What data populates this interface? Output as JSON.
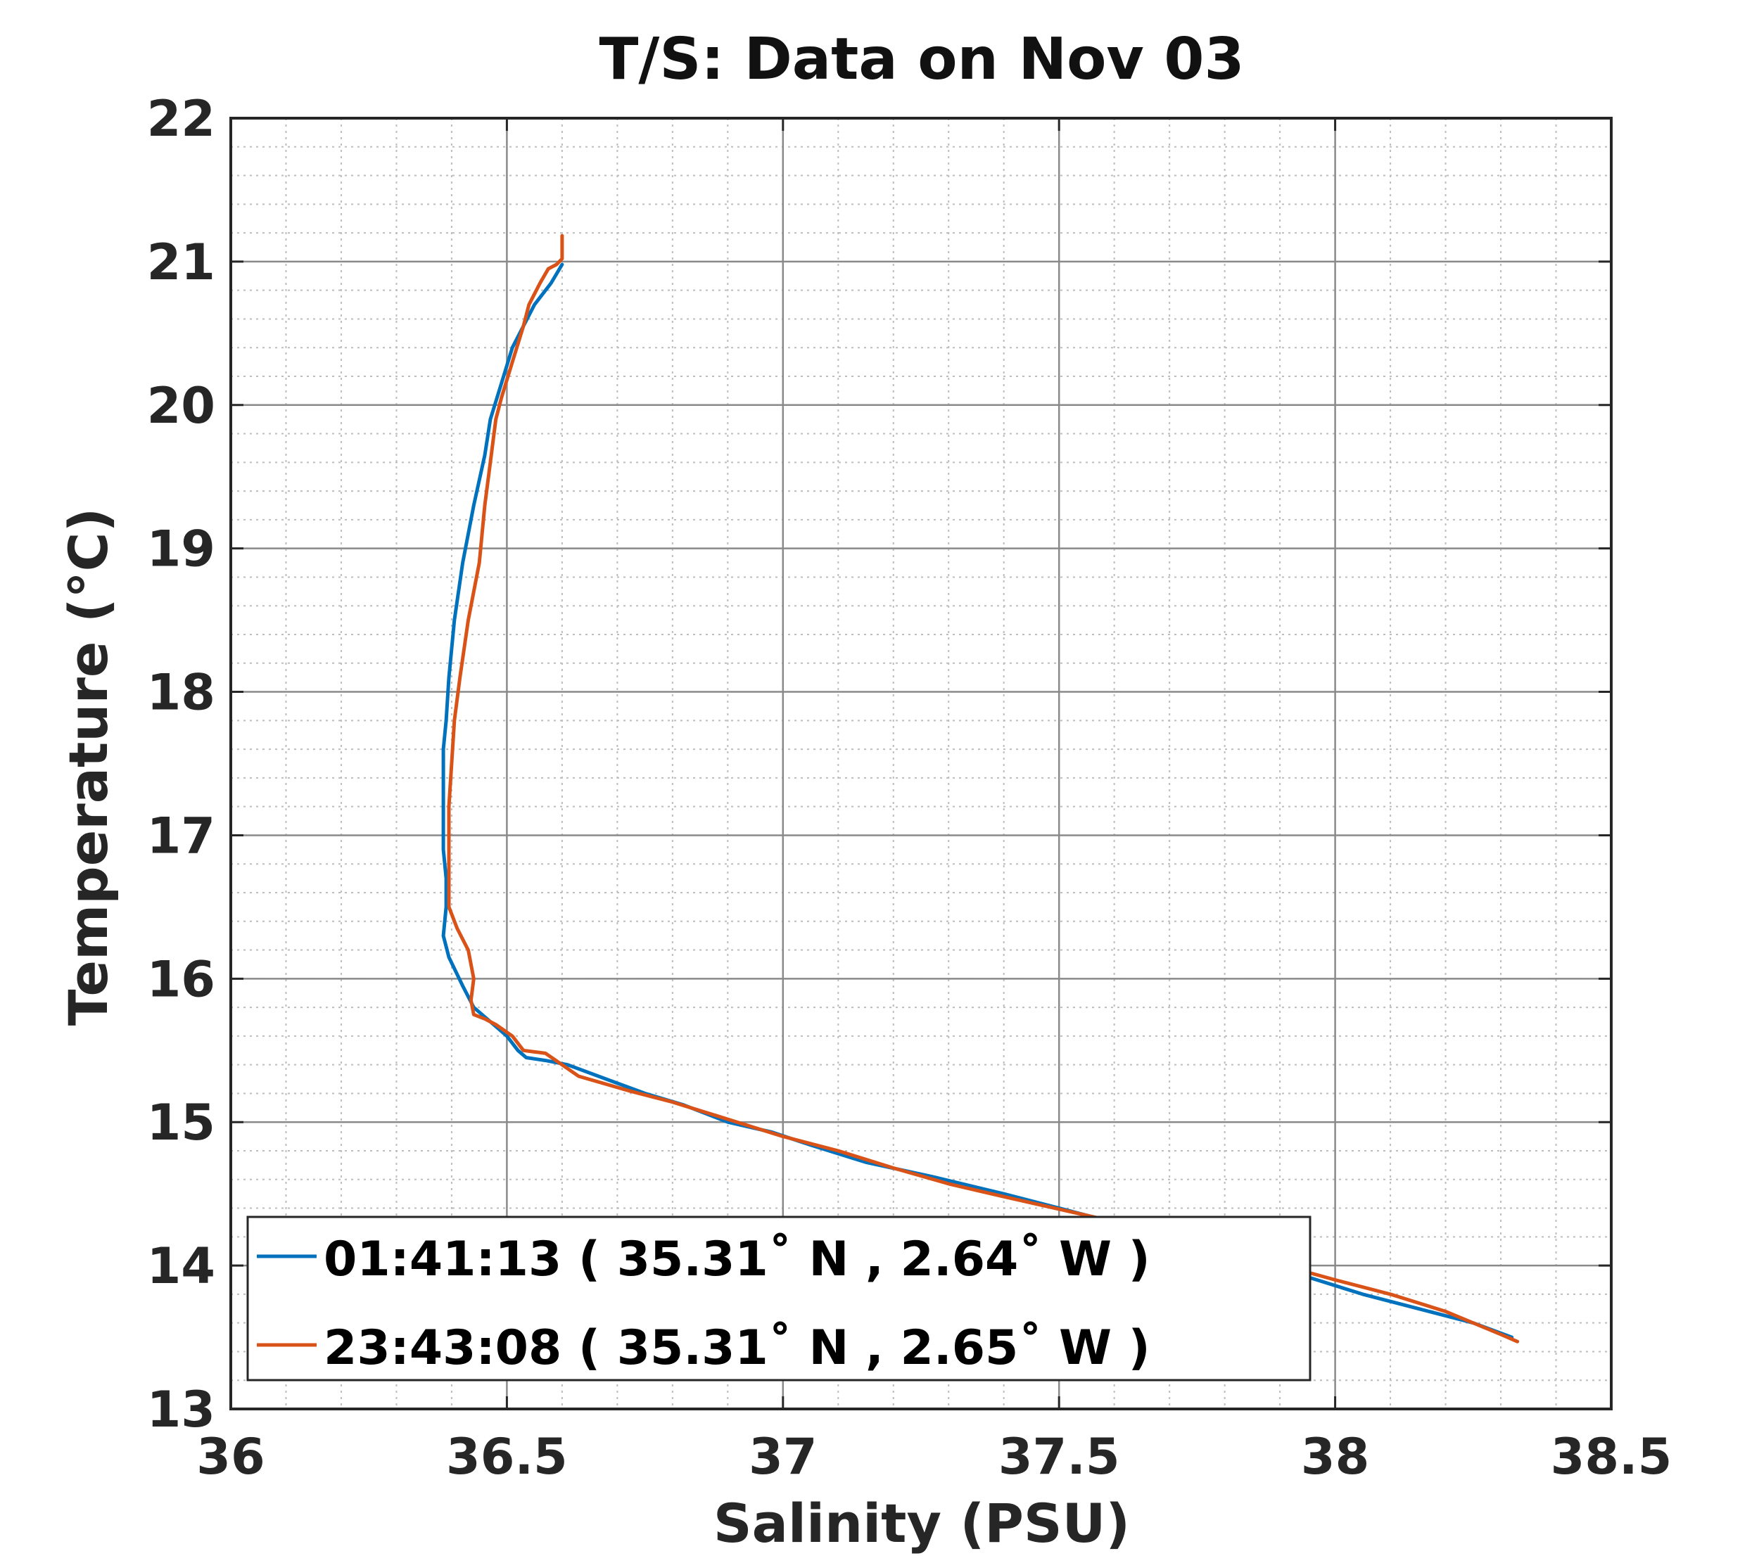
{
  "chart_data": {
    "type": "line",
    "title": "T/S: Data on Nov 03",
    "xlabel": "Salinity (PSU)",
    "ylabel": "Temperature (°C)",
    "xlim": [
      36,
      38.5
    ],
    "ylim": [
      13,
      22
    ],
    "xticks": [
      "36",
      "36.5",
      "37",
      "37.5",
      "38",
      "38.5"
    ],
    "yticks": [
      "13",
      "14",
      "15",
      "16",
      "17",
      "18",
      "19",
      "20",
      "21",
      "22"
    ],
    "grid": true,
    "minor_grid": true,
    "legend_position": "bottom-left",
    "series": [
      {
        "name": "01:41:13 ( 35.31˚ N , 2.64˚ W )",
        "color": "#0072BD",
        "points": [
          [
            36.6,
            20.98
          ],
          [
            36.58,
            20.85
          ],
          [
            36.55,
            20.7
          ],
          [
            36.53,
            20.55
          ],
          [
            36.51,
            20.4
          ],
          [
            36.49,
            20.15
          ],
          [
            36.47,
            19.9
          ],
          [
            36.46,
            19.65
          ],
          [
            36.44,
            19.3
          ],
          [
            36.42,
            18.9
          ],
          [
            36.405,
            18.5
          ],
          [
            36.395,
            18.1
          ],
          [
            36.39,
            17.8
          ],
          [
            36.385,
            17.6
          ],
          [
            36.385,
            17.2
          ],
          [
            36.385,
            16.9
          ],
          [
            36.39,
            16.7
          ],
          [
            36.39,
            16.5
          ],
          [
            36.385,
            16.3
          ],
          [
            36.395,
            16.15
          ],
          [
            36.42,
            15.95
          ],
          [
            36.44,
            15.8
          ],
          [
            36.47,
            15.7
          ],
          [
            36.5,
            15.6
          ],
          [
            36.52,
            15.5
          ],
          [
            36.535,
            15.45
          ],
          [
            36.57,
            15.43
          ],
          [
            36.61,
            15.4
          ],
          [
            36.68,
            15.3
          ],
          [
            36.75,
            15.2
          ],
          [
            36.82,
            15.12
          ],
          [
            36.9,
            15.0
          ],
          [
            36.98,
            14.93
          ],
          [
            37.05,
            14.84
          ],
          [
            37.15,
            14.72
          ],
          [
            37.27,
            14.62
          ],
          [
            37.4,
            14.5
          ],
          [
            37.52,
            14.38
          ],
          [
            37.65,
            14.25
          ],
          [
            37.8,
            14.1
          ],
          [
            37.95,
            13.92
          ],
          [
            38.05,
            13.8
          ],
          [
            38.15,
            13.7
          ],
          [
            38.25,
            13.6
          ],
          [
            38.32,
            13.5
          ]
        ]
      },
      {
        "name": "23:43:08 ( 35.31˚ N , 2.65˚ W )",
        "color": "#D95319",
        "points": [
          [
            36.6,
            21.18
          ],
          [
            36.6,
            21.02
          ],
          [
            36.59,
            20.98
          ],
          [
            36.575,
            20.95
          ],
          [
            36.56,
            20.85
          ],
          [
            36.54,
            20.7
          ],
          [
            36.53,
            20.55
          ],
          [
            36.51,
            20.3
          ],
          [
            36.49,
            20.05
          ],
          [
            36.48,
            19.9
          ],
          [
            36.47,
            19.6
          ],
          [
            36.46,
            19.3
          ],
          [
            36.45,
            18.9
          ],
          [
            36.43,
            18.5
          ],
          [
            36.415,
            18.1
          ],
          [
            36.405,
            17.8
          ],
          [
            36.4,
            17.5
          ],
          [
            36.395,
            17.2
          ],
          [
            36.395,
            16.9
          ],
          [
            36.395,
            16.7
          ],
          [
            36.395,
            16.5
          ],
          [
            36.41,
            16.35
          ],
          [
            36.43,
            16.2
          ],
          [
            36.44,
            16.0
          ],
          [
            36.435,
            15.85
          ],
          [
            36.44,
            15.75
          ],
          [
            36.46,
            15.72
          ],
          [
            36.48,
            15.68
          ],
          [
            36.51,
            15.6
          ],
          [
            36.53,
            15.5
          ],
          [
            36.57,
            15.48
          ],
          [
            36.6,
            15.4
          ],
          [
            36.63,
            15.32
          ],
          [
            36.72,
            15.22
          ],
          [
            36.8,
            15.14
          ],
          [
            36.9,
            15.02
          ],
          [
            37.0,
            14.9
          ],
          [
            37.1,
            14.8
          ],
          [
            37.2,
            14.68
          ],
          [
            37.3,
            14.57
          ],
          [
            37.4,
            14.48
          ],
          [
            37.55,
            14.35
          ],
          [
            37.7,
            14.22
          ],
          [
            37.85,
            14.06
          ],
          [
            38.0,
            13.9
          ],
          [
            38.1,
            13.8
          ],
          [
            38.2,
            13.68
          ],
          [
            38.3,
            13.52
          ],
          [
            38.33,
            13.47
          ]
        ]
      }
    ]
  }
}
